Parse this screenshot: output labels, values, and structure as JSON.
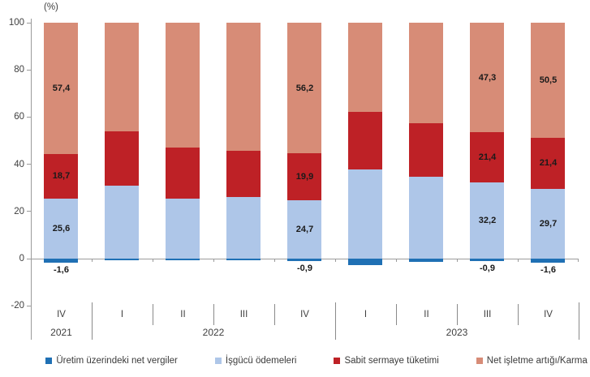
{
  "y_axis_unit": "(%)",
  "colors": {
    "net_taxes": "#1F70B4",
    "labour": "#AEC6E8",
    "fixed_capital": "#BE2126",
    "surplus": "#D78C77",
    "axis_line": "#9B9B9B",
    "tick_text": "#3F3F3F",
    "value_label": "#1A1A1A"
  },
  "legend": [
    {
      "label": "Üretim üzerindeki net vergiler",
      "color_key": "net_taxes"
    },
    {
      "label": "İşgücü ödemeleri",
      "color_key": "labour"
    },
    {
      "label": "Sabit sermaye tüketimi",
      "color_key": "fixed_capital"
    },
    {
      "label": "Net işletme artığı/Karma gelir",
      "color_key": "surplus"
    }
  ],
  "chart_data": {
    "type": "bar",
    "stacked": true,
    "unit": "%",
    "y_axis": {
      "min": -20,
      "max": 100,
      "tick_step": 20,
      "ticks": [
        100,
        80,
        60,
        40,
        20,
        0,
        -20
      ]
    },
    "quarters": [
      "IV",
      "I",
      "II",
      "III",
      "IV",
      "I",
      "II",
      "III",
      "IV"
    ],
    "year_groups": [
      {
        "label": "2021",
        "start": 0,
        "span": 1
      },
      {
        "label": "2022",
        "start": 1,
        "span": 4
      },
      {
        "label": "2023",
        "start": 5,
        "span": 4
      }
    ],
    "series": [
      {
        "name": "Üretim üzerindeki net vergiler",
        "color_key": "net_taxes",
        "values": [
          -1.6,
          -0.8,
          -0.6,
          -0.6,
          -0.9,
          -2.7,
          -1.4,
          -0.9,
          -1.6
        ],
        "labels": [
          "-1,6",
          null,
          null,
          null,
          "-0,9",
          null,
          null,
          "-0,9",
          "-1,6"
        ]
      },
      {
        "name": "İşgücü ödemeleri",
        "color_key": "labour",
        "values": [
          25.6,
          30.9,
          25.4,
          26.1,
          24.7,
          37.8,
          34.7,
          32.2,
          29.7
        ],
        "labels": [
          "25,6",
          null,
          null,
          null,
          "24,7",
          null,
          null,
          "32,2",
          "29,7"
        ]
      },
      {
        "name": "Sabit sermaye tüketimi",
        "color_key": "fixed_capital",
        "values": [
          18.7,
          23.1,
          21.6,
          19.5,
          19.9,
          24.5,
          22.7,
          21.4,
          21.4
        ],
        "labels": [
          "18,7",
          null,
          null,
          null,
          "19,9",
          null,
          null,
          "21,4",
          "21,4"
        ]
      },
      {
        "name": "Net işletme artığı/Karma gelir",
        "color_key": "surplus",
        "values": [
          57.4,
          46.8,
          53.6,
          55.0,
          56.2,
          40.4,
          44.0,
          47.3,
          50.5
        ],
        "labels": [
          "57,4",
          null,
          null,
          null,
          "56,2",
          null,
          null,
          "47,3",
          "50,5"
        ]
      }
    ]
  }
}
